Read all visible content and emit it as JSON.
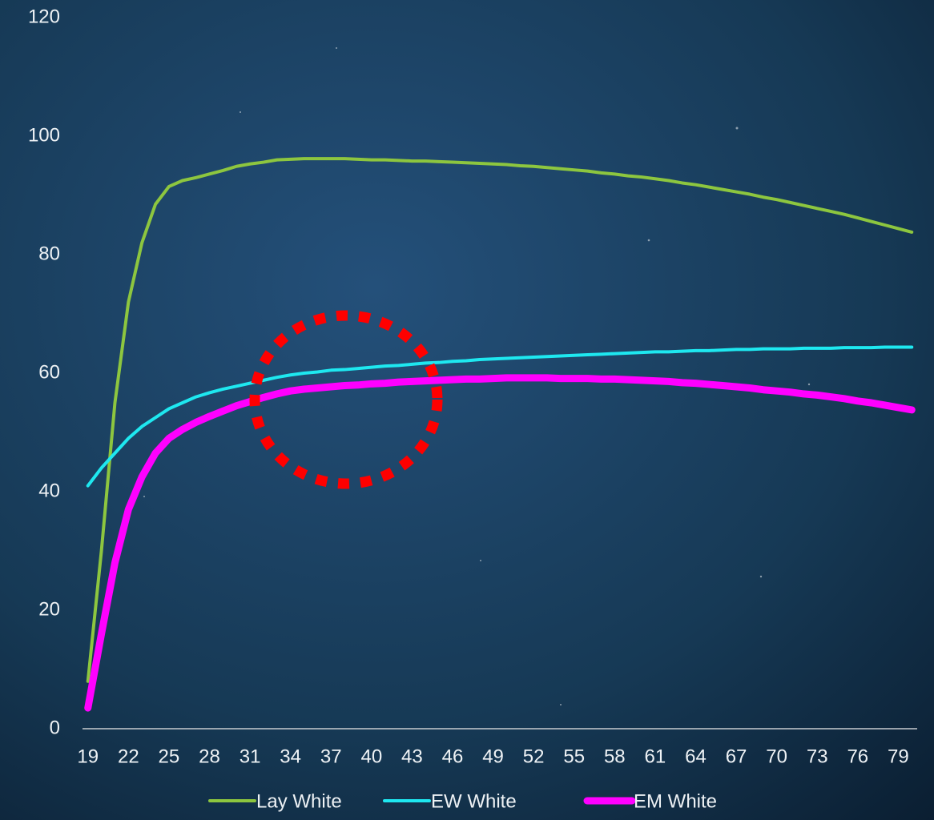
{
  "chart_data": {
    "type": "line",
    "x": [
      19,
      20,
      21,
      22,
      23,
      24,
      25,
      26,
      27,
      28,
      29,
      30,
      31,
      32,
      33,
      34,
      35,
      36,
      37,
      38,
      39,
      40,
      41,
      42,
      43,
      44,
      45,
      46,
      47,
      48,
      49,
      50,
      51,
      52,
      53,
      54,
      55,
      56,
      57,
      58,
      59,
      60,
      61,
      62,
      63,
      64,
      65,
      66,
      67,
      68,
      69,
      70,
      71,
      72,
      73,
      74,
      75,
      76,
      77,
      78,
      79,
      80
    ],
    "series": [
      {
        "name": "Lay White",
        "color": "#8dc63f",
        "width": 4,
        "values": [
          8,
          30,
          55,
          72,
          82,
          88.5,
          91.5,
          92.5,
          93,
          93.6,
          94.2,
          94.9,
          95.3,
          95.6,
          96,
          96.1,
          96.2,
          96.2,
          96.2,
          96.2,
          96.1,
          96,
          96,
          95.9,
          95.8,
          95.8,
          95.7,
          95.6,
          95.5,
          95.4,
          95.3,
          95.2,
          95,
          94.9,
          94.7,
          94.5,
          94.3,
          94.1,
          93.8,
          93.6,
          93.3,
          93.1,
          92.8,
          92.5,
          92.1,
          91.8,
          91.4,
          91,
          90.6,
          90.2,
          89.7,
          89.3,
          88.8,
          88.3,
          87.8,
          87.3,
          86.8,
          86.2,
          85.6,
          85,
          84.4,
          83.8
        ]
      },
      {
        "name": "EW White",
        "color": "#1ee8f0",
        "width": 4,
        "values": [
          41,
          44,
          46.5,
          49,
          51,
          52.5,
          54,
          55,
          56,
          56.7,
          57.3,
          57.8,
          58.3,
          58.8,
          59.3,
          59.7,
          60,
          60.2,
          60.5,
          60.6,
          60.8,
          61,
          61.2,
          61.3,
          61.5,
          61.7,
          61.8,
          62,
          62.1,
          62.3,
          62.4,
          62.5,
          62.6,
          62.7,
          62.8,
          62.9,
          63,
          63.1,
          63.2,
          63.3,
          63.4,
          63.5,
          63.6,
          63.6,
          63.7,
          63.8,
          63.8,
          63.9,
          64,
          64,
          64.1,
          64.1,
          64.1,
          64.2,
          64.2,
          64.2,
          64.3,
          64.3,
          64.3,
          64.4,
          64.4,
          64.4
        ]
      },
      {
        "name": "EM White",
        "color": "#ff00ff",
        "width": 9,
        "values": [
          3.5,
          16,
          28,
          37,
          42.5,
          46.5,
          49,
          50.5,
          51.7,
          52.7,
          53.6,
          54.5,
          55.2,
          55.9,
          56.5,
          57,
          57.3,
          57.5,
          57.7,
          57.9,
          58,
          58.2,
          58.3,
          58.5,
          58.6,
          58.7,
          58.8,
          58.9,
          59,
          59,
          59.1,
          59.2,
          59.2,
          59.2,
          59.2,
          59.1,
          59.1,
          59.1,
          59,
          59,
          58.9,
          58.8,
          58.7,
          58.6,
          58.4,
          58.3,
          58.1,
          57.9,
          57.7,
          57.5,
          57.2,
          57,
          56.8,
          56.5,
          56.3,
          56,
          55.7,
          55.3,
          55,
          54.6,
          54.2,
          53.8
        ]
      }
    ],
    "xlim": [
      18.6,
      80.4
    ],
    "xticks": [
      19,
      22,
      25,
      28,
      31,
      34,
      37,
      40,
      43,
      46,
      49,
      52,
      55,
      58,
      61,
      64,
      67,
      70,
      73,
      76,
      79
    ],
    "ylim": [
      0,
      120
    ],
    "yticks": [
      0,
      20,
      40,
      60,
      80,
      100,
      120
    ],
    "grid": false,
    "legend": "bottom"
  }
}
